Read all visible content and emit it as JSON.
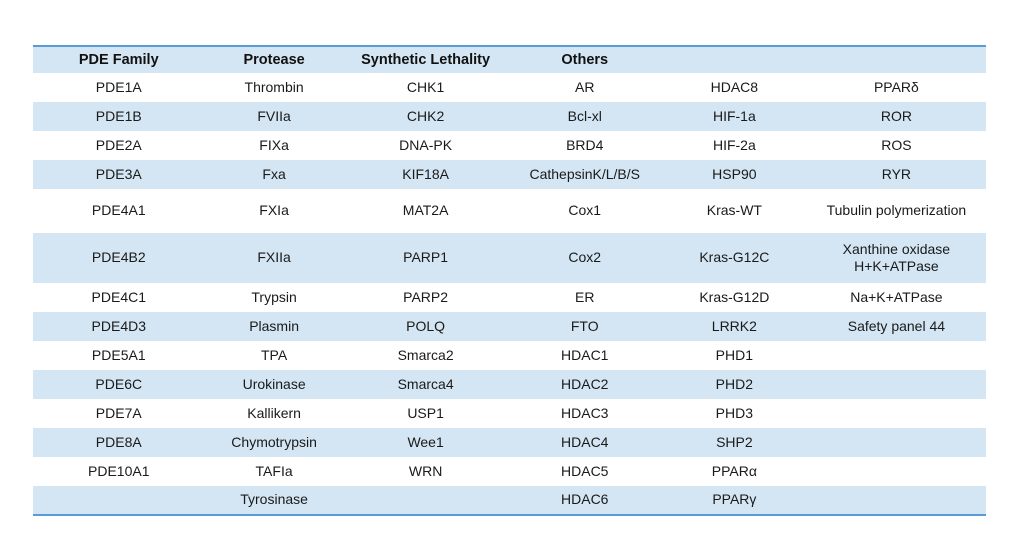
{
  "colors": {
    "band_fill": "#d4e6f3",
    "table_border": "#5b9bd5",
    "text": "#1a1a1a",
    "page_background": "#ffffff"
  },
  "table": {
    "header_labels": [
      "PDE Family",
      "Protease",
      "Synthetic Lethality",
      "Others",
      "",
      ""
    ],
    "rows": [
      [
        "PDE1A",
        "Thrombin",
        "CHK1",
        "AR",
        "HDAC8",
        "PPARδ"
      ],
      [
        "PDE1B",
        "FVIIa",
        "CHK2",
        "Bcl-xl",
        "HIF-1a",
        "ROR"
      ],
      [
        "PDE2A",
        "FIXa",
        "DNA-PK",
        "BRD4",
        "HIF-2a",
        "ROS"
      ],
      [
        "PDE3A",
        "Fxa",
        "KIF18A",
        "CathepsinK/L/B/S",
        "HSP90",
        "RYR"
      ],
      [
        "PDE4A1",
        "FXIa",
        "MAT2A",
        "Cox1",
        "Kras-WT",
        "Tubulin polymerization"
      ],
      [
        "PDE4B2",
        "FXIIa",
        "PARP1",
        "Cox2",
        "Kras-G12C",
        "Xanthine oxidase\nH+K+ATPase"
      ],
      [
        "PDE4C1",
        "Trypsin",
        "PARP2",
        "ER",
        "Kras-G12D",
        "Na+K+ATPase"
      ],
      [
        "PDE4D3",
        "Plasmin",
        "POLQ",
        "FTO",
        "LRRK2",
        "Safety panel 44"
      ],
      [
        "PDE5A1",
        "TPA",
        "Smarca2",
        "HDAC1",
        "PHD1",
        ""
      ],
      [
        "PDE6C",
        "Urokinase",
        "Smarca4",
        "HDAC2",
        "PHD2",
        ""
      ],
      [
        "PDE7A",
        "Kallikern",
        "USP1",
        "HDAC3",
        "PHD3",
        ""
      ],
      [
        "PDE8A",
        "Chymotrypsin",
        "Wee1",
        "HDAC4",
        "SHP2",
        ""
      ],
      [
        "PDE10A1",
        "TAFIa",
        "WRN",
        "HDAC5",
        "PPARα",
        ""
      ],
      [
        "",
        "Tyrosinase",
        "",
        "HDAC6",
        "PPARγ",
        ""
      ]
    ]
  }
}
